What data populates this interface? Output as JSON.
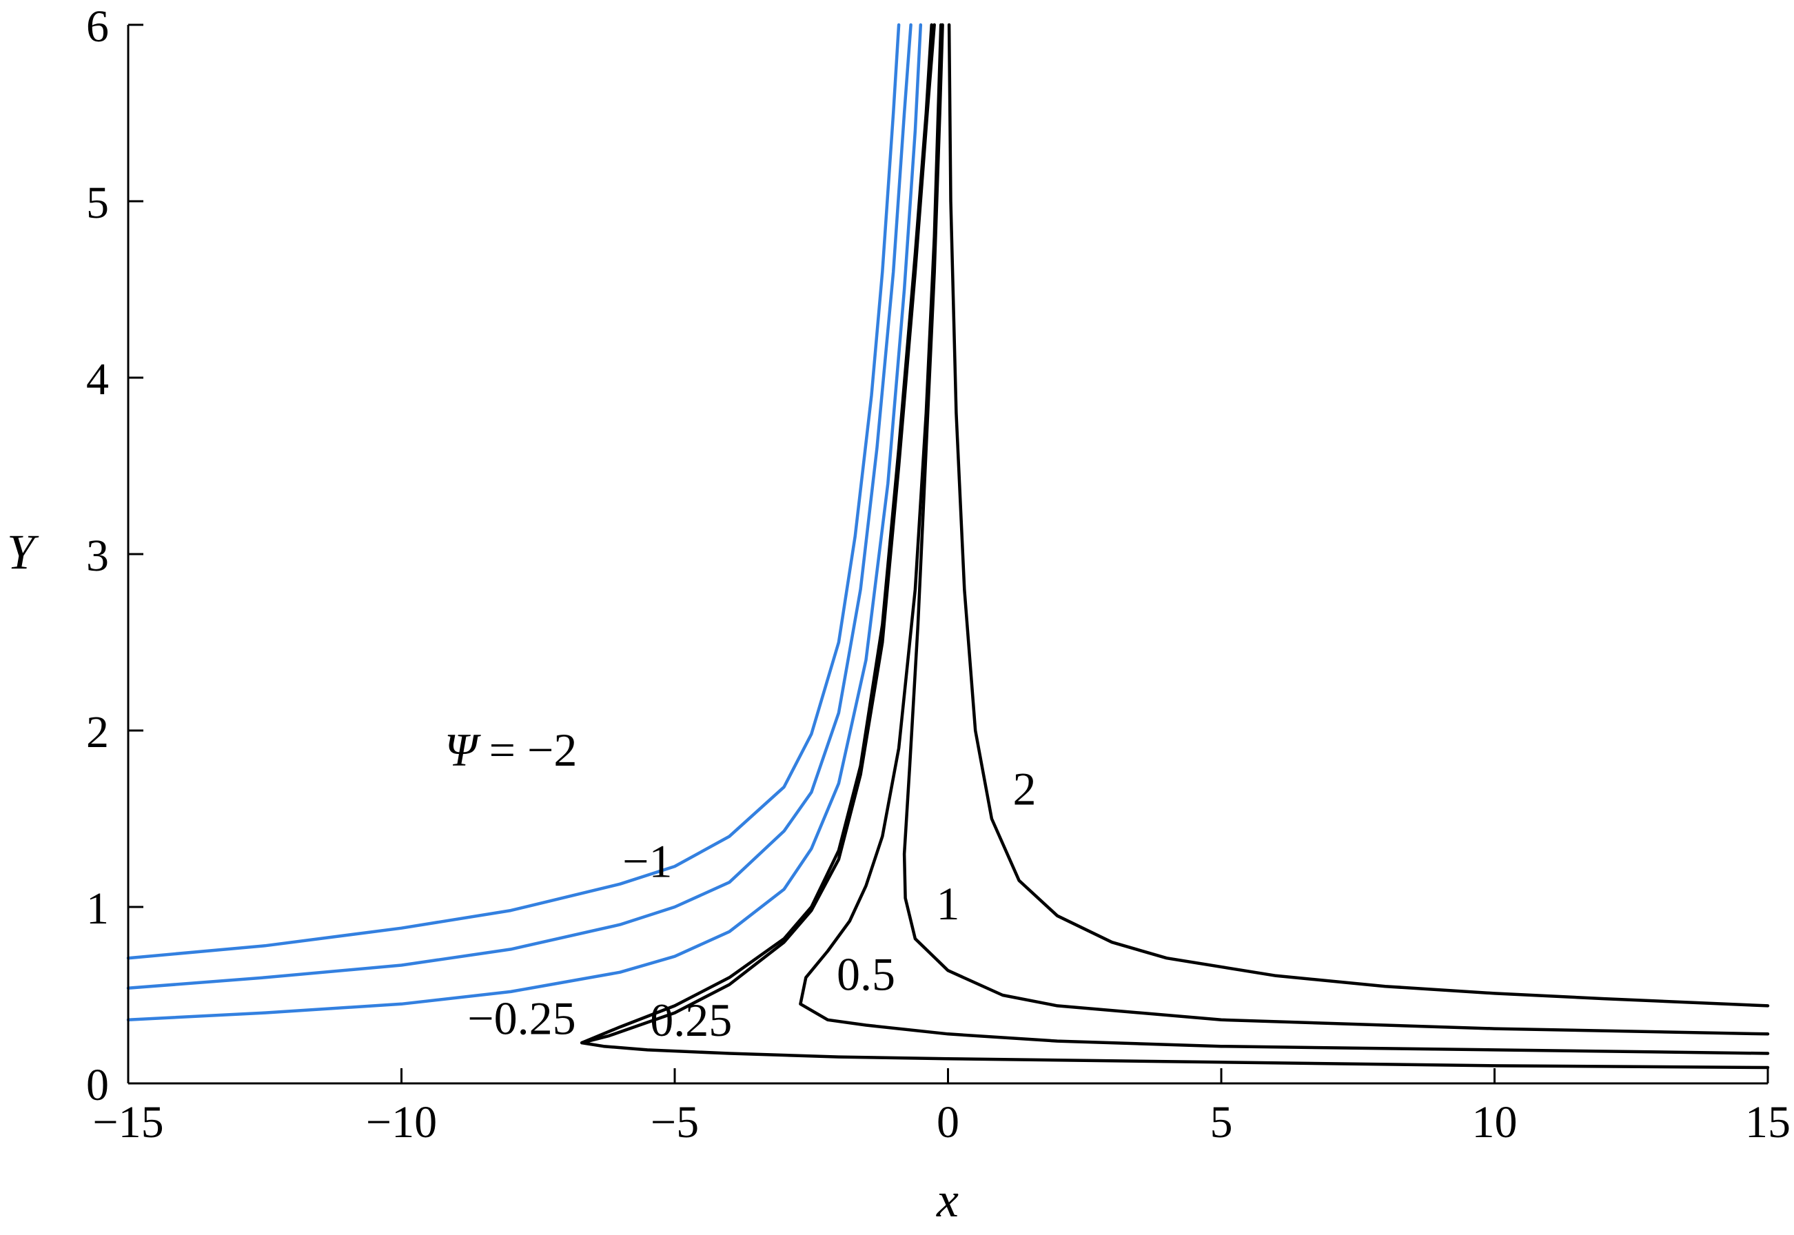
{
  "chart_data": {
    "type": "line",
    "title": "",
    "xlabel": "x",
    "ylabel": "Y",
    "xlim": [
      -15,
      15
    ],
    "ylim": [
      0,
      6
    ],
    "xticks": [
      -15,
      -10,
      -5,
      0,
      5,
      10,
      15
    ],
    "xtick_labels": [
      "−15",
      "−10",
      "−5",
      "0",
      "5",
      "10",
      "15"
    ],
    "yticks": [
      0,
      1,
      2,
      3,
      4,
      5,
      6
    ],
    "ytick_labels": [
      "0",
      "1",
      "2",
      "3",
      "4",
      "5",
      "6"
    ],
    "grid": false,
    "legend": "none",
    "colors": {
      "negative": "#3380e0",
      "positive": "#000000"
    },
    "series": [
      {
        "name": "−2",
        "color": "#3380e0",
        "points": [
          [
            -15,
            0.71
          ],
          [
            -12.5,
            0.78
          ],
          [
            -10,
            0.88
          ],
          [
            -8,
            0.98
          ],
          [
            -6,
            1.13
          ],
          [
            -5,
            1.23
          ],
          [
            -4,
            1.4
          ],
          [
            -3,
            1.68
          ],
          [
            -2.5,
            1.98
          ],
          [
            -2,
            2.5
          ],
          [
            -1.7,
            3.1
          ],
          [
            -1.4,
            3.9
          ],
          [
            -1.2,
            4.6
          ],
          [
            -1.0,
            5.5
          ],
          [
            -0.9,
            6.0
          ]
        ]
      },
      {
        "name": "−1",
        "color": "#3380e0",
        "points": [
          [
            -15,
            0.54
          ],
          [
            -12.5,
            0.6
          ],
          [
            -10,
            0.67
          ],
          [
            -8,
            0.76
          ],
          [
            -6,
            0.9
          ],
          [
            -5,
            1.0
          ],
          [
            -4,
            1.14
          ],
          [
            -3,
            1.43
          ],
          [
            -2.5,
            1.65
          ],
          [
            -2,
            2.1
          ],
          [
            -1.6,
            2.8
          ],
          [
            -1.3,
            3.6
          ],
          [
            -1.0,
            4.6
          ],
          [
            -0.8,
            5.5
          ],
          [
            -0.68,
            6.0
          ]
        ]
      },
      {
        "name": "",
        "color": "#3380e0",
        "points": [
          [
            -15,
            0.36
          ],
          [
            -12.5,
            0.4
          ],
          [
            -10,
            0.45
          ],
          [
            -8,
            0.52
          ],
          [
            -6,
            0.63
          ],
          [
            -5,
            0.72
          ],
          [
            -4,
            0.86
          ],
          [
            -3,
            1.1
          ],
          [
            -2.5,
            1.33
          ],
          [
            -2,
            1.7
          ],
          [
            -1.5,
            2.4
          ],
          [
            -1.1,
            3.4
          ],
          [
            -0.8,
            4.5
          ],
          [
            -0.6,
            5.4
          ],
          [
            -0.5,
            6.0
          ]
        ]
      },
      {
        "name": "−0.25",
        "color": "#000000",
        "points": [
          [
            -6.7,
            0.23
          ],
          [
            -6,
            0.32
          ],
          [
            -5,
            0.44
          ],
          [
            -4,
            0.6
          ],
          [
            -3,
            0.82
          ],
          [
            -2.5,
            1.0
          ],
          [
            -2,
            1.32
          ],
          [
            -1.6,
            1.8
          ],
          [
            -1.2,
            2.6
          ],
          [
            -0.9,
            3.6
          ],
          [
            -0.6,
            4.7
          ],
          [
            -0.4,
            5.5
          ],
          [
            -0.3,
            6.0
          ]
        ]
      },
      {
        "name": "0.25",
        "color": "#000000",
        "points": [
          [
            15,
            0.09
          ],
          [
            10,
            0.1
          ],
          [
            5,
            0.12
          ],
          [
            0,
            0.14
          ],
          [
            -2,
            0.15
          ],
          [
            -4,
            0.17
          ],
          [
            -5.5,
            0.19
          ],
          [
            -6.3,
            0.21
          ],
          [
            -6.7,
            0.23
          ],
          [
            -6.2,
            0.27
          ],
          [
            -5,
            0.4
          ],
          [
            -4,
            0.56
          ],
          [
            -3,
            0.8
          ],
          [
            -2.5,
            0.98
          ],
          [
            -2,
            1.27
          ],
          [
            -1.6,
            1.75
          ],
          [
            -1.2,
            2.5
          ],
          [
            -0.9,
            3.5
          ],
          [
            -0.6,
            4.6
          ],
          [
            -0.38,
            5.5
          ],
          [
            -0.25,
            6.0
          ]
        ]
      },
      {
        "name": "0.5",
        "color": "#000000",
        "points": [
          [
            15,
            0.17
          ],
          [
            10,
            0.19
          ],
          [
            5,
            0.21
          ],
          [
            2,
            0.24
          ],
          [
            0,
            0.28
          ],
          [
            -1.5,
            0.33
          ],
          [
            -2.2,
            0.36
          ],
          [
            -2.7,
            0.45
          ],
          [
            -2.6,
            0.6
          ],
          [
            -2.2,
            0.75
          ],
          [
            -1.8,
            0.92
          ],
          [
            -1.5,
            1.12
          ],
          [
            -1.2,
            1.4
          ],
          [
            -0.9,
            1.9
          ],
          [
            -0.6,
            2.8
          ],
          [
            -0.4,
            3.8
          ],
          [
            -0.25,
            4.8
          ],
          [
            -0.18,
            5.5
          ],
          [
            -0.13,
            6.0
          ]
        ]
      },
      {
        "name": "1",
        "color": "#000000",
        "points": [
          [
            15,
            0.28
          ],
          [
            10,
            0.31
          ],
          [
            5,
            0.36
          ],
          [
            2,
            0.44
          ],
          [
            1,
            0.5
          ],
          [
            0,
            0.64
          ],
          [
            -0.6,
            0.82
          ],
          [
            -0.78,
            1.05
          ],
          [
            -0.8,
            1.3
          ],
          [
            -0.7,
            1.8
          ],
          [
            -0.55,
            2.6
          ],
          [
            -0.4,
            3.6
          ],
          [
            -0.25,
            4.6
          ],
          [
            -0.15,
            5.5
          ],
          [
            -0.1,
            6.0
          ]
        ]
      },
      {
        "name": "2",
        "color": "#000000",
        "points": [
          [
            15,
            0.44
          ],
          [
            12,
            0.48
          ],
          [
            10,
            0.51
          ],
          [
            8,
            0.55
          ],
          [
            6,
            0.61
          ],
          [
            4,
            0.71
          ],
          [
            3,
            0.8
          ],
          [
            2,
            0.95
          ],
          [
            1.3,
            1.15
          ],
          [
            0.8,
            1.5
          ],
          [
            0.5,
            2.0
          ],
          [
            0.3,
            2.8
          ],
          [
            0.15,
            3.8
          ],
          [
            0.05,
            5.0
          ],
          [
            0.02,
            6.0
          ]
        ]
      }
    ],
    "annotations": [
      {
        "text": "= −2",
        "prefix": "Ψ",
        "x": -8.0,
        "y": 1.8
      },
      {
        "text": "−1",
        "x": -5.5,
        "y": 1.17
      },
      {
        "text": "1",
        "x": 0.0,
        "y": 0.93
      },
      {
        "text": "2",
        "x": 1.4,
        "y": 1.58
      },
      {
        "text": "0.5",
        "x": -1.5,
        "y": 0.53
      },
      {
        "text": "−0.25",
        "x": -7.8,
        "y": 0.28
      },
      {
        "text": "0.25",
        "x": -4.7,
        "y": 0.27
      }
    ]
  }
}
